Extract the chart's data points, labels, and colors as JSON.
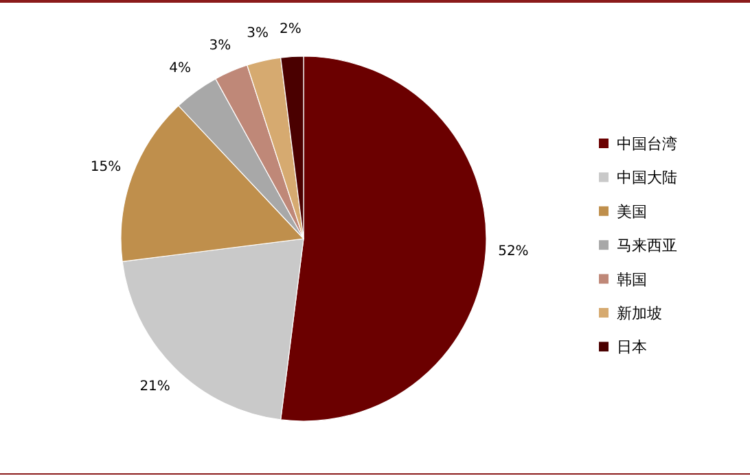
{
  "chart_data": {
    "type": "pie",
    "categories": [
      "中国台湾",
      "中国大陆",
      "美国",
      "马来西亚",
      "韩国",
      "新加坡",
      "日本"
    ],
    "values": [
      52,
      21,
      15,
      4,
      3,
      3,
      2
    ],
    "colors": [
      "#6b0000",
      "#c9c9c9",
      "#bf8f4c",
      "#a8a8a8",
      "#bf8878",
      "#d6aa70",
      "#4a0000"
    ],
    "value_labels": [
      "52%",
      "21%",
      "15%",
      "4%",
      "3%",
      "3%",
      "2%"
    ],
    "legend": "right"
  }
}
